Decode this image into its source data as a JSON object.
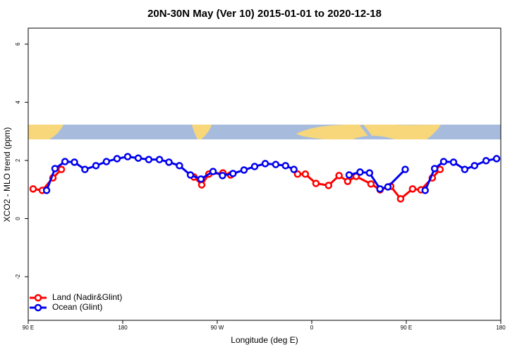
{
  "chart_data": {
    "type": "line",
    "title": "20N-30N May (Ver 10)   2015-01-01 to 2020-12-18",
    "x_label": "Longitude (deg E)",
    "y_label": "XCO2 - MLO trend (ppm)",
    "xlim": [
      90,
      540
    ],
    "ylim": [
      -3.5,
      6.55
    ],
    "xticks": [
      {
        "value": 90,
        "label": "90 E"
      },
      180,
      {
        "value": 270,
        "label": "90 W"
      },
      0,
      {
        "value": 450,
        "label": "90 E"
      },
      {
        "value": 540,
        "label": "180"
      }
    ],
    "yticks": [
      6,
      4,
      2,
      0,
      -2
    ],
    "legend": "bottom-left",
    "series": [
      {
        "name": "Land (Nadir&Glint)",
        "color": "#ff0000",
        "x": [
          94.7,
          103.4,
          113.5,
          121.6,
          200,
          247.8,
          255.2,
          262,
          275.4,
          282.7,
          320,
          346.5,
          353.9,
          364,
          376,
          386,
          394.2,
          402.3,
          416.4,
          425.1,
          435.2,
          444.6,
          456,
          464,
          474.8,
          482.2
        ],
        "values": [
          1.02,
          0.97,
          1.4,
          1.69,
          null,
          1.43,
          1.16,
          1.53,
          1.57,
          1.5,
          null,
          1.53,
          1.53,
          1.21,
          1.14,
          1.48,
          1.28,
          1.45,
          1.19,
          0.99,
          1.11,
          0.68,
          1.02,
          0.99,
          1.4,
          1.69
        ]
      },
      {
        "name": "Ocean (Glint)",
        "color": "#0000ee",
        "x": [
          107.5,
          115.5,
          125,
          134,
          144,
          154.5,
          164.5,
          174.6,
          184.7,
          194.8,
          204.8,
          215,
          224,
          234,
          244.5,
          254.5,
          266,
          275,
          285,
          295.5,
          305.6,
          315.7,
          325.7,
          335,
          343,
          370,
          395.6,
          406,
          415,
          425,
          432.5,
          449,
          460,
          468,
          477,
          485.6,
          495,
          505.7,
          515,
          526,
          536
        ],
        "values": [
          0.97,
          1.72,
          1.96,
          1.94,
          1.69,
          1.82,
          1.96,
          2.06,
          2.13,
          2.08,
          2.03,
          2.03,
          1.94,
          1.82,
          1.5,
          1.36,
          1.62,
          1.48,
          1.55,
          1.67,
          1.79,
          1.89,
          1.86,
          1.82,
          1.69,
          null,
          1.5,
          1.6,
          1.57,
          1.02,
          1.09,
          1.69,
          null,
          0.97,
          1.72,
          1.96,
          1.94,
          1.69,
          1.82,
          1.99,
          2.06
        ]
      }
    ]
  }
}
